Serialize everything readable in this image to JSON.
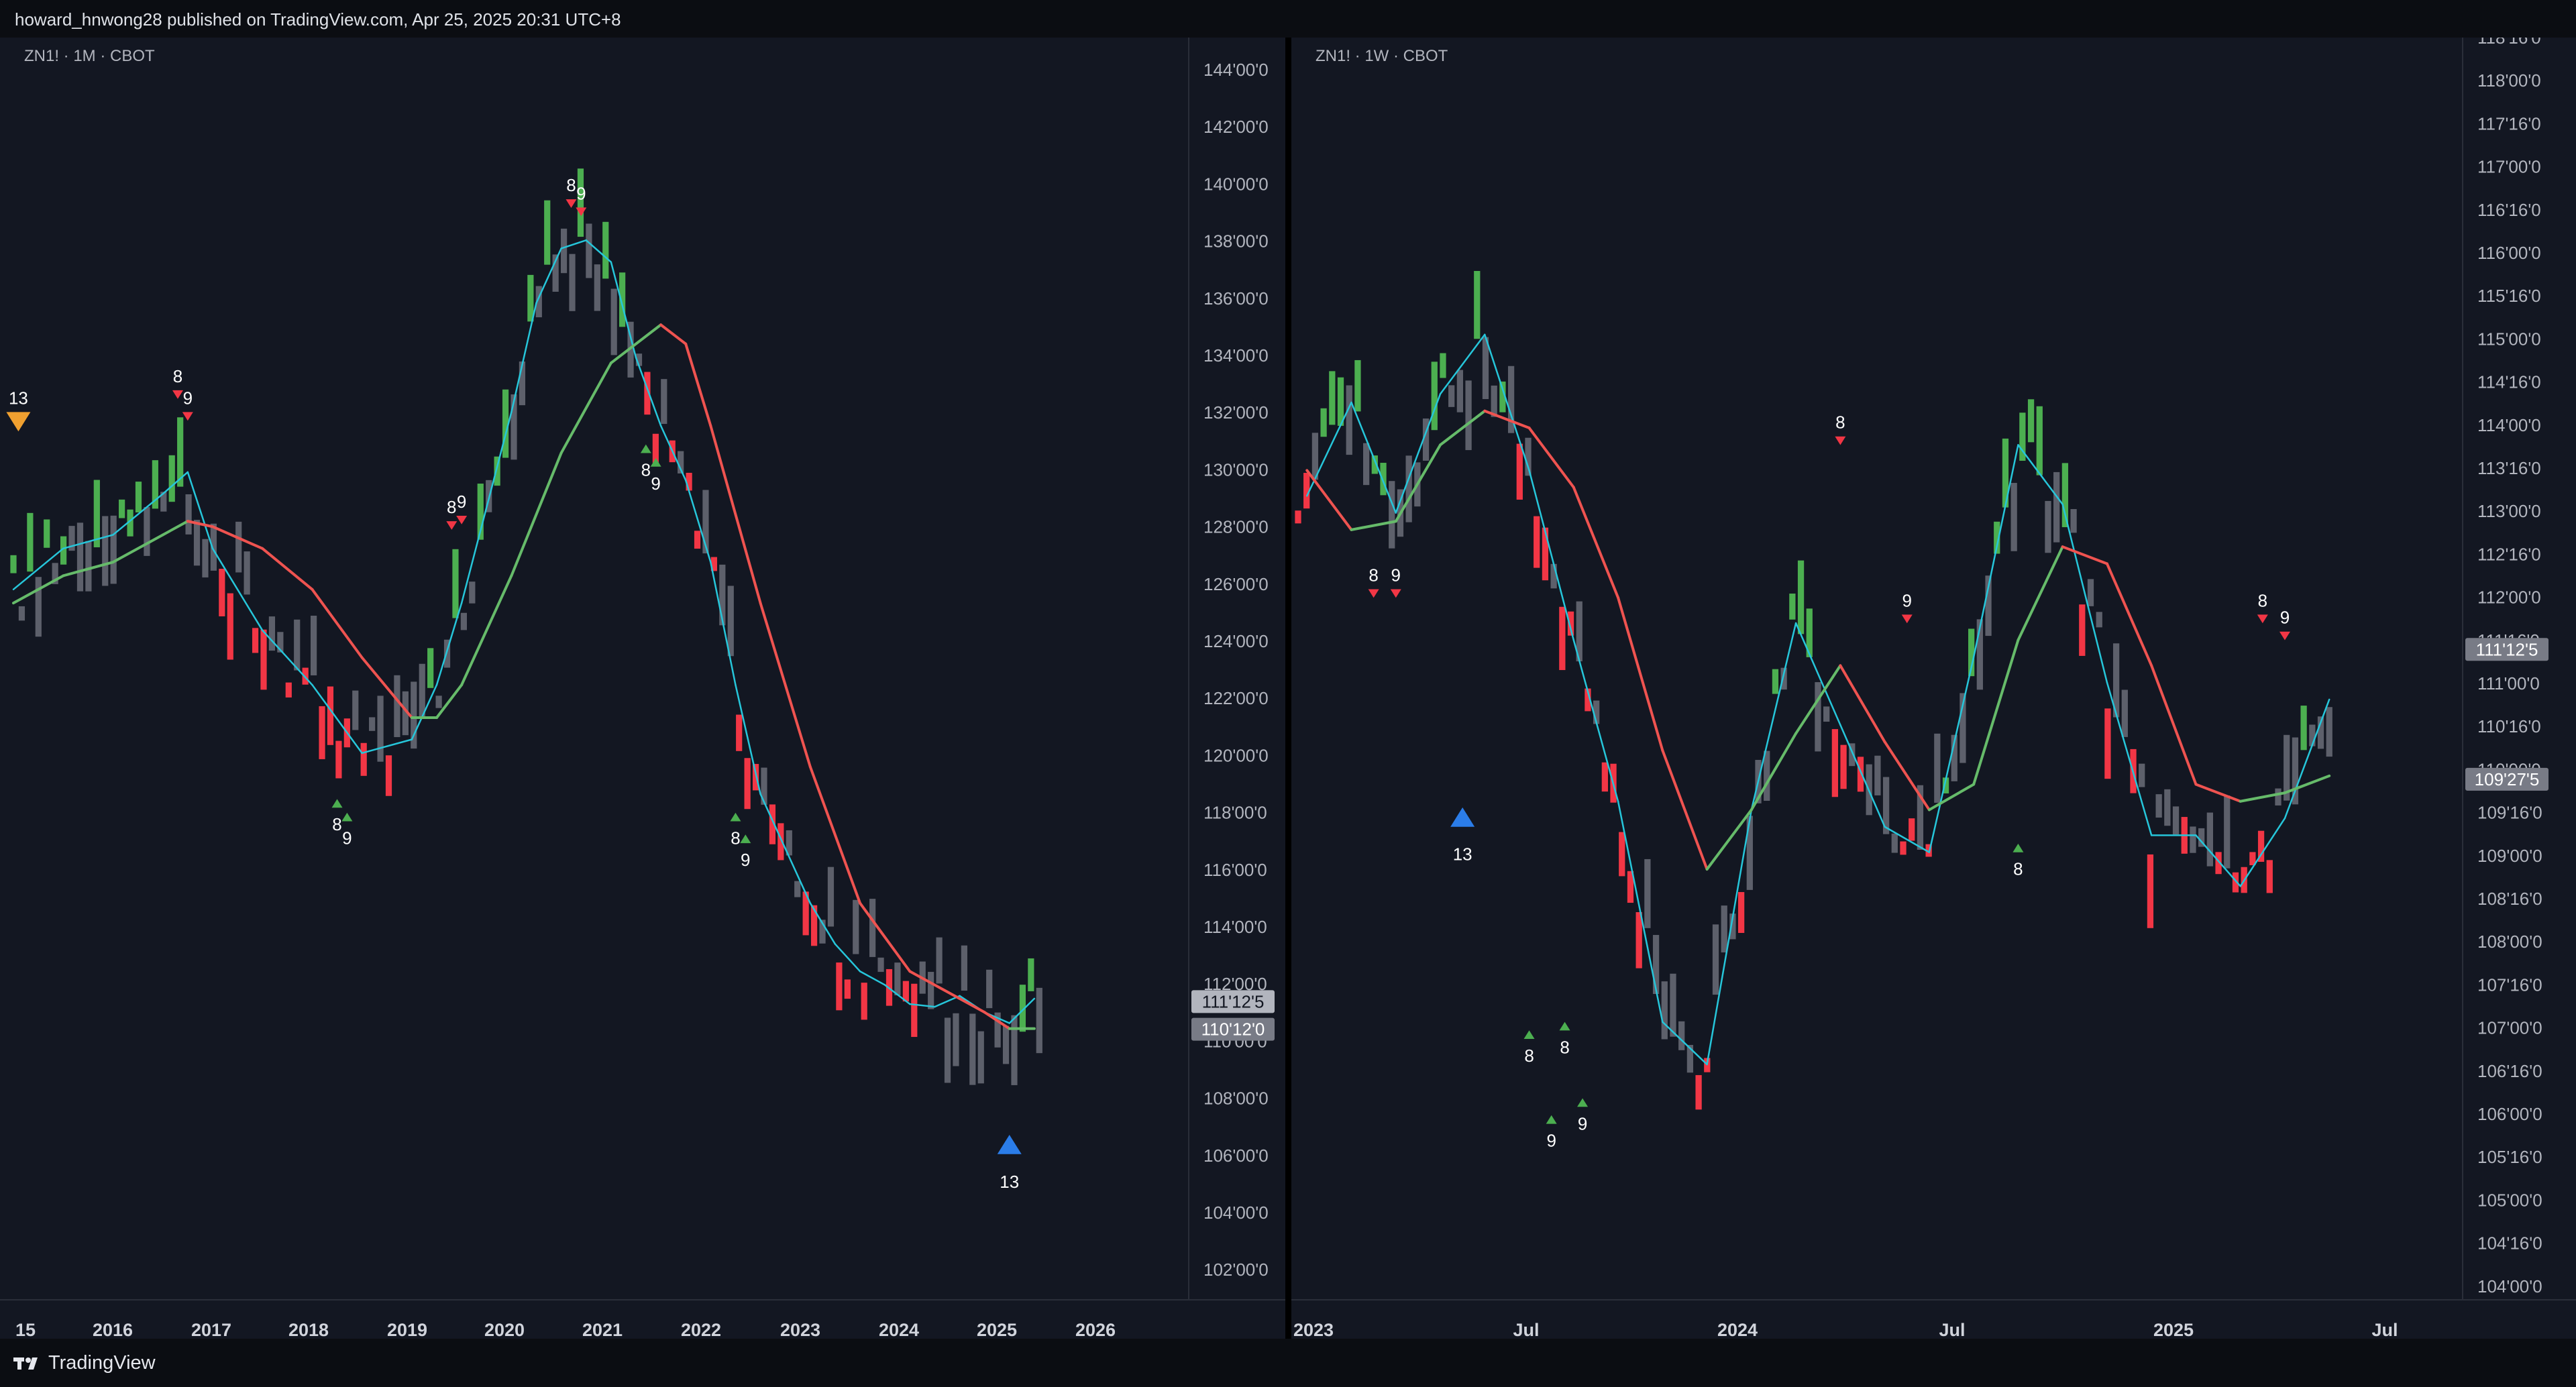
{
  "header": {
    "published": "howard_hnwong28 published on TradingView.com, Apr 25, 2025 20:31 UTC+8"
  },
  "footer": {
    "brand": "TradingView"
  },
  "colors": {
    "up": "#4caf50",
    "down": "#f23645",
    "neutral": "#5d606b",
    "ema_fast": "#26c6da",
    "ema_slow_up": "#66bb6a",
    "ema_slow_down": "#ef5350",
    "buy_setup": "#4caf50",
    "sell_setup": "#f23645",
    "countdown_sell": "#f0a030",
    "countdown_buy": "#2b7de9",
    "background": "#131722"
  },
  "chart_data": [
    {
      "type": "line",
      "title": "ZN1! · 1M · CBOT",
      "x_ticks": [
        "15",
        "2016",
        "2017",
        "2018",
        "2019",
        "2020",
        "2021",
        "2022",
        "2023",
        "2024",
        "2025",
        "2026"
      ],
      "y_ticks": [
        "144'00'0",
        "142'00'0",
        "140'00'0",
        "138'00'0",
        "136'00'0",
        "134'00'0",
        "132'00'0",
        "130'00'0",
        "128'00'0",
        "126'00'0",
        "124'00'0",
        "122'00'0",
        "120'00'0",
        "118'00'0",
        "116'00'0",
        "114'00'0",
        "112'00'0",
        "110'00'0",
        "108'00'0",
        "106'00'0",
        "104'00'0",
        "102'00'0"
      ],
      "ylim": [
        101,
        145.5
      ],
      "price_labels": [
        {
          "text": "111'12'5",
          "value": 111.39,
          "style": "light"
        },
        {
          "text": "110'12'0",
          "value": 110.375,
          "style": "dark"
        }
      ],
      "series": [
        {
          "role": "ema_fast",
          "x": [
            2015.0,
            2015.5,
            2016.0,
            2016.5,
            2016.75,
            2017.0,
            2017.5,
            2018.0,
            2018.5,
            2019.0,
            2019.25,
            2019.5,
            2020.0,
            2020.25,
            2020.5,
            2020.75,
            2021.0,
            2021.25,
            2021.5,
            2021.75,
            2022.0,
            2022.25,
            2022.5,
            2022.75,
            2023.0,
            2023.25,
            2023.5,
            2023.75,
            2024.0,
            2024.25,
            2024.5,
            2024.75,
            2025.0,
            2025.25
          ],
          "values": [
            126.5,
            128.0,
            128.5,
            130.0,
            130.8,
            128.0,
            125.0,
            123.0,
            120.5,
            121.0,
            123.0,
            126.0,
            133.0,
            137.0,
            139.0,
            139.3,
            138.5,
            135.0,
            132.5,
            130.5,
            127.5,
            123.0,
            119.0,
            117.0,
            115.0,
            113.5,
            112.5,
            112.0,
            111.3,
            111.2,
            111.6,
            111.0,
            110.6,
            111.5
          ]
        },
        {
          "role": "ema_slow",
          "x": [
            2015.0,
            2015.5,
            2016.0,
            2016.5,
            2016.75,
            2017.0,
            2017.5,
            2018.0,
            2018.5,
            2019.0,
            2019.25,
            2019.5,
            2020.0,
            2020.5,
            2021.0,
            2021.5,
            2021.75,
            2022.0,
            2022.5,
            2023.0,
            2023.5,
            2024.0,
            2024.5,
            2024.75,
            2025.0,
            2025.25
          ],
          "values": [
            126.0,
            127.0,
            127.5,
            128.5,
            129.0,
            128.8,
            128.0,
            126.5,
            124.0,
            121.8,
            121.8,
            123.0,
            127.0,
            131.5,
            134.8,
            136.2,
            135.5,
            132.5,
            126.0,
            120.0,
            115.0,
            112.5,
            111.5,
            111.0,
            110.4,
            110.4
          ]
        }
      ],
      "annotations": [
        "13",
        "8",
        "9",
        "8",
        "9",
        "8",
        "9",
        "8",
        "9",
        "8",
        "9",
        "8",
        "9",
        "13"
      ]
    },
    {
      "type": "line",
      "title": "ZN1! · 1W · CBOT",
      "x_ticks": [
        "2023",
        "Jul",
        "2024",
        "Jul",
        "2025",
        "Jul"
      ],
      "y_ticks": [
        "118'16'0",
        "118'00'0",
        "117'16'0",
        "117'00'0",
        "116'16'0",
        "116'00'0",
        "115'16'0",
        "115'00'0",
        "114'16'0",
        "114'00'0",
        "113'16'0",
        "113'00'0",
        "112'16'0",
        "112'00'0",
        "111'16'0",
        "111'00'0",
        "110'16'0",
        "110'00'0",
        "109'16'0",
        "109'00'0",
        "108'16'0",
        "108'00'0",
        "107'16'0",
        "107'00'0",
        "106'16'0",
        "106'00'0",
        "105'16'0",
        "105'00'0",
        "104'16'0",
        "104'00'0"
      ],
      "ylim": [
        103.9,
        118.6
      ],
      "price_labels": [
        {
          "text": "111'12'5",
          "value": 111.39,
          "style": "dark"
        },
        {
          "text": "109'27'5",
          "value": 109.86,
          "style": "dark"
        }
      ],
      "series": [
        {
          "role": "ema_fast",
          "x": [
            2023.0,
            2023.1,
            2023.2,
            2023.3,
            2023.4,
            2023.5,
            2023.6,
            2023.7,
            2023.8,
            2023.9,
            2024.0,
            2024.1,
            2024.2,
            2024.3,
            2024.4,
            2024.5,
            2024.6,
            2024.7,
            2024.8,
            2024.9,
            2025.0,
            2025.1,
            2025.2,
            2025.3
          ],
          "values": [
            113.2,
            114.3,
            113.0,
            114.4,
            115.1,
            113.5,
            111.5,
            109.6,
            107.0,
            106.5,
            109.5,
            111.7,
            110.5,
            109.3,
            109.0,
            111.3,
            113.8,
            113.1,
            111.0,
            109.2,
            109.2,
            108.6,
            109.4,
            110.8
          ]
        },
        {
          "role": "ema_slow",
          "x": [
            2023.0,
            2023.1,
            2023.2,
            2023.3,
            2023.4,
            2023.5,
            2023.6,
            2023.7,
            2023.8,
            2023.9,
            2024.0,
            2024.1,
            2024.2,
            2024.3,
            2024.4,
            2024.5,
            2024.6,
            2024.7,
            2024.8,
            2024.9,
            2025.0,
            2025.1,
            2025.2,
            2025.3
          ],
          "values": [
            113.5,
            112.8,
            112.9,
            113.8,
            114.2,
            114.0,
            113.3,
            112.0,
            110.2,
            108.8,
            109.5,
            110.4,
            111.2,
            110.3,
            109.5,
            109.8,
            111.5,
            112.6,
            112.4,
            111.2,
            109.8,
            109.6,
            109.7,
            109.9
          ]
        }
      ],
      "annotations": [
        "8",
        "9",
        "8",
        "9",
        "8",
        "9",
        "13",
        "8",
        "9",
        "8",
        "8",
        "9"
      ]
    }
  ]
}
